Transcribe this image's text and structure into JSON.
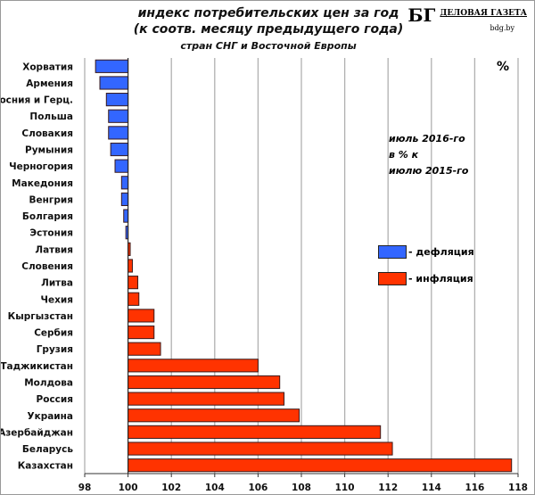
{
  "header": {
    "title_line1": "индекс потребительских цен за год",
    "title_line2": "(к соотв. месяцу предыдущего года)",
    "title_line3": "стран СНГ и Восточной Европы",
    "logo": {
      "mark": "БГ",
      "name": "ДЕЛОВАЯ ГАЗЕТА",
      "url": "bdg.by"
    }
  },
  "chart_data": {
    "type": "bar",
    "orientation": "horizontal",
    "baseline": 100,
    "categories": [
      "Хорватия",
      "Армения",
      "Босния и Герц.",
      "Польша",
      "Словакия",
      "Румыния",
      "Черногория",
      "Македония",
      "Венгрия",
      "Болгария",
      "Эстония",
      "Латвия",
      "Словения",
      "Литва",
      "Чехия",
      "Кыргызстан",
      "Сербия",
      "Грузия",
      "Таджикистан",
      "Молдова",
      "Россия",
      "Украина",
      "Азербайджан",
      "Беларусь",
      "Казахстан"
    ],
    "values": [
      98.5,
      98.7,
      99.0,
      99.1,
      99.1,
      99.2,
      99.4,
      99.7,
      99.7,
      99.8,
      99.9,
      100.1,
      100.2,
      100.45,
      100.5,
      101.2,
      101.2,
      101.5,
      106.0,
      107.0,
      107.2,
      107.9,
      111.65,
      112.2,
      117.7
    ],
    "xlim": [
      98,
      118
    ],
    "xticks": [
      "98",
      "100",
      "102",
      "104",
      "106",
      "108",
      "110",
      "112",
      "114",
      "116",
      "118"
    ],
    "unit": "%",
    "annotation": [
      "июль 2016-го",
      "в % к",
      "июлю 2015-го"
    ],
    "legend": [
      {
        "name": "- дефляция",
        "color": "#3366ff"
      },
      {
        "name": "- инфляция",
        "color": "#ff3300"
      }
    ],
    "legend_position": "right",
    "grid": true,
    "colors": {
      "deflation": "#3366ff",
      "inflation": "#ff3300"
    }
  }
}
